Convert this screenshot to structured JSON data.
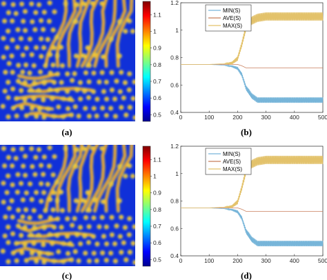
{
  "panels": [
    {
      "caption": "(a)",
      "pattern_seed": 11
    },
    {
      "caption": "(c)",
      "pattern_seed": 11
    }
  ],
  "colorbar": {
    "ticks": [
      "1.1",
      "1",
      "0.9",
      "0.8",
      "0.7",
      "0.6",
      "0.5"
    ],
    "tick_values": [
      1.1,
      1.0,
      0.9,
      0.8,
      0.7,
      0.6,
      0.5
    ],
    "range": [
      0.46,
      1.18
    ],
    "colormap": "jet"
  },
  "colors": {
    "min": "#77b5d9",
    "ave": "#c87d5b",
    "max": "#e3c26b"
  },
  "chart_data": [
    {
      "caption": "(b)",
      "type": "line",
      "xlim": [
        0,
        500
      ],
      "ylim": [
        0.4,
        1.2
      ],
      "xticks": [
        "0",
        "100",
        "200",
        "300",
        "400",
        "500"
      ],
      "yticks": [
        "0.4",
        "0.6",
        "0.8",
        "1",
        "1.2"
      ],
      "xtick_values": [
        0,
        100,
        200,
        300,
        400,
        500
      ],
      "ytick_values": [
        0.4,
        0.6,
        0.8,
        1.0,
        1.2
      ],
      "legend_position": "top-center",
      "series": [
        {
          "name": "MIN(S)",
          "color_key": "min",
          "oscillation": 0.04,
          "x": [
            0,
            100,
            150,
            180,
            200,
            215,
            230,
            250,
            270,
            300,
            400,
            500
          ],
          "y": [
            0.75,
            0.75,
            0.745,
            0.73,
            0.71,
            0.66,
            0.56,
            0.5,
            0.47,
            0.47,
            0.47,
            0.47
          ]
        },
        {
          "name": "AVE(S)",
          "color_key": "ave",
          "oscillation": 0,
          "x": [
            0,
            100,
            150,
            200,
            215,
            230,
            500
          ],
          "y": [
            0.75,
            0.75,
            0.75,
            0.75,
            0.74,
            0.725,
            0.725
          ]
        },
        {
          "name": "MAX(S)",
          "color_key": "max",
          "oscillation": 0.06,
          "x": [
            0,
            100,
            150,
            180,
            200,
            215,
            230,
            250,
            270,
            300,
            400,
            500
          ],
          "y": [
            0.75,
            0.75,
            0.755,
            0.77,
            0.81,
            0.92,
            1.05,
            1.1,
            1.12,
            1.13,
            1.13,
            1.13
          ]
        }
      ]
    },
    {
      "caption": "(d)",
      "type": "line",
      "xlim": [
        0,
        500
      ],
      "ylim": [
        0.4,
        1.2
      ],
      "xticks": [
        "0",
        "100",
        "200",
        "300",
        "400",
        "500"
      ],
      "yticks": [
        "0.4",
        "0.6",
        "0.8",
        "1",
        "1.2"
      ],
      "xtick_values": [
        0,
        100,
        200,
        300,
        400,
        500
      ],
      "ytick_values": [
        0.4,
        0.6,
        0.8,
        1.0,
        1.2
      ],
      "legend_position": "top-center",
      "series": [
        {
          "name": "MIN(S)",
          "color_key": "min",
          "oscillation": 0.04,
          "x": [
            0,
            100,
            150,
            180,
            200,
            215,
            230,
            250,
            270,
            300,
            400,
            500
          ],
          "y": [
            0.75,
            0.75,
            0.745,
            0.73,
            0.71,
            0.66,
            0.56,
            0.5,
            0.47,
            0.47,
            0.47,
            0.47
          ]
        },
        {
          "name": "AVE(S)",
          "color_key": "ave",
          "oscillation": 0,
          "x": [
            0,
            100,
            150,
            200,
            215,
            230,
            500
          ],
          "y": [
            0.75,
            0.75,
            0.75,
            0.75,
            0.74,
            0.725,
            0.725
          ]
        },
        {
          "name": "MAX(S)",
          "color_key": "max",
          "oscillation": 0.06,
          "x": [
            0,
            100,
            150,
            180,
            200,
            215,
            230,
            250,
            270,
            300,
            400,
            500
          ],
          "y": [
            0.75,
            0.75,
            0.755,
            0.77,
            0.81,
            0.92,
            1.05,
            1.1,
            1.12,
            1.13,
            1.13,
            1.13
          ]
        }
      ]
    }
  ]
}
